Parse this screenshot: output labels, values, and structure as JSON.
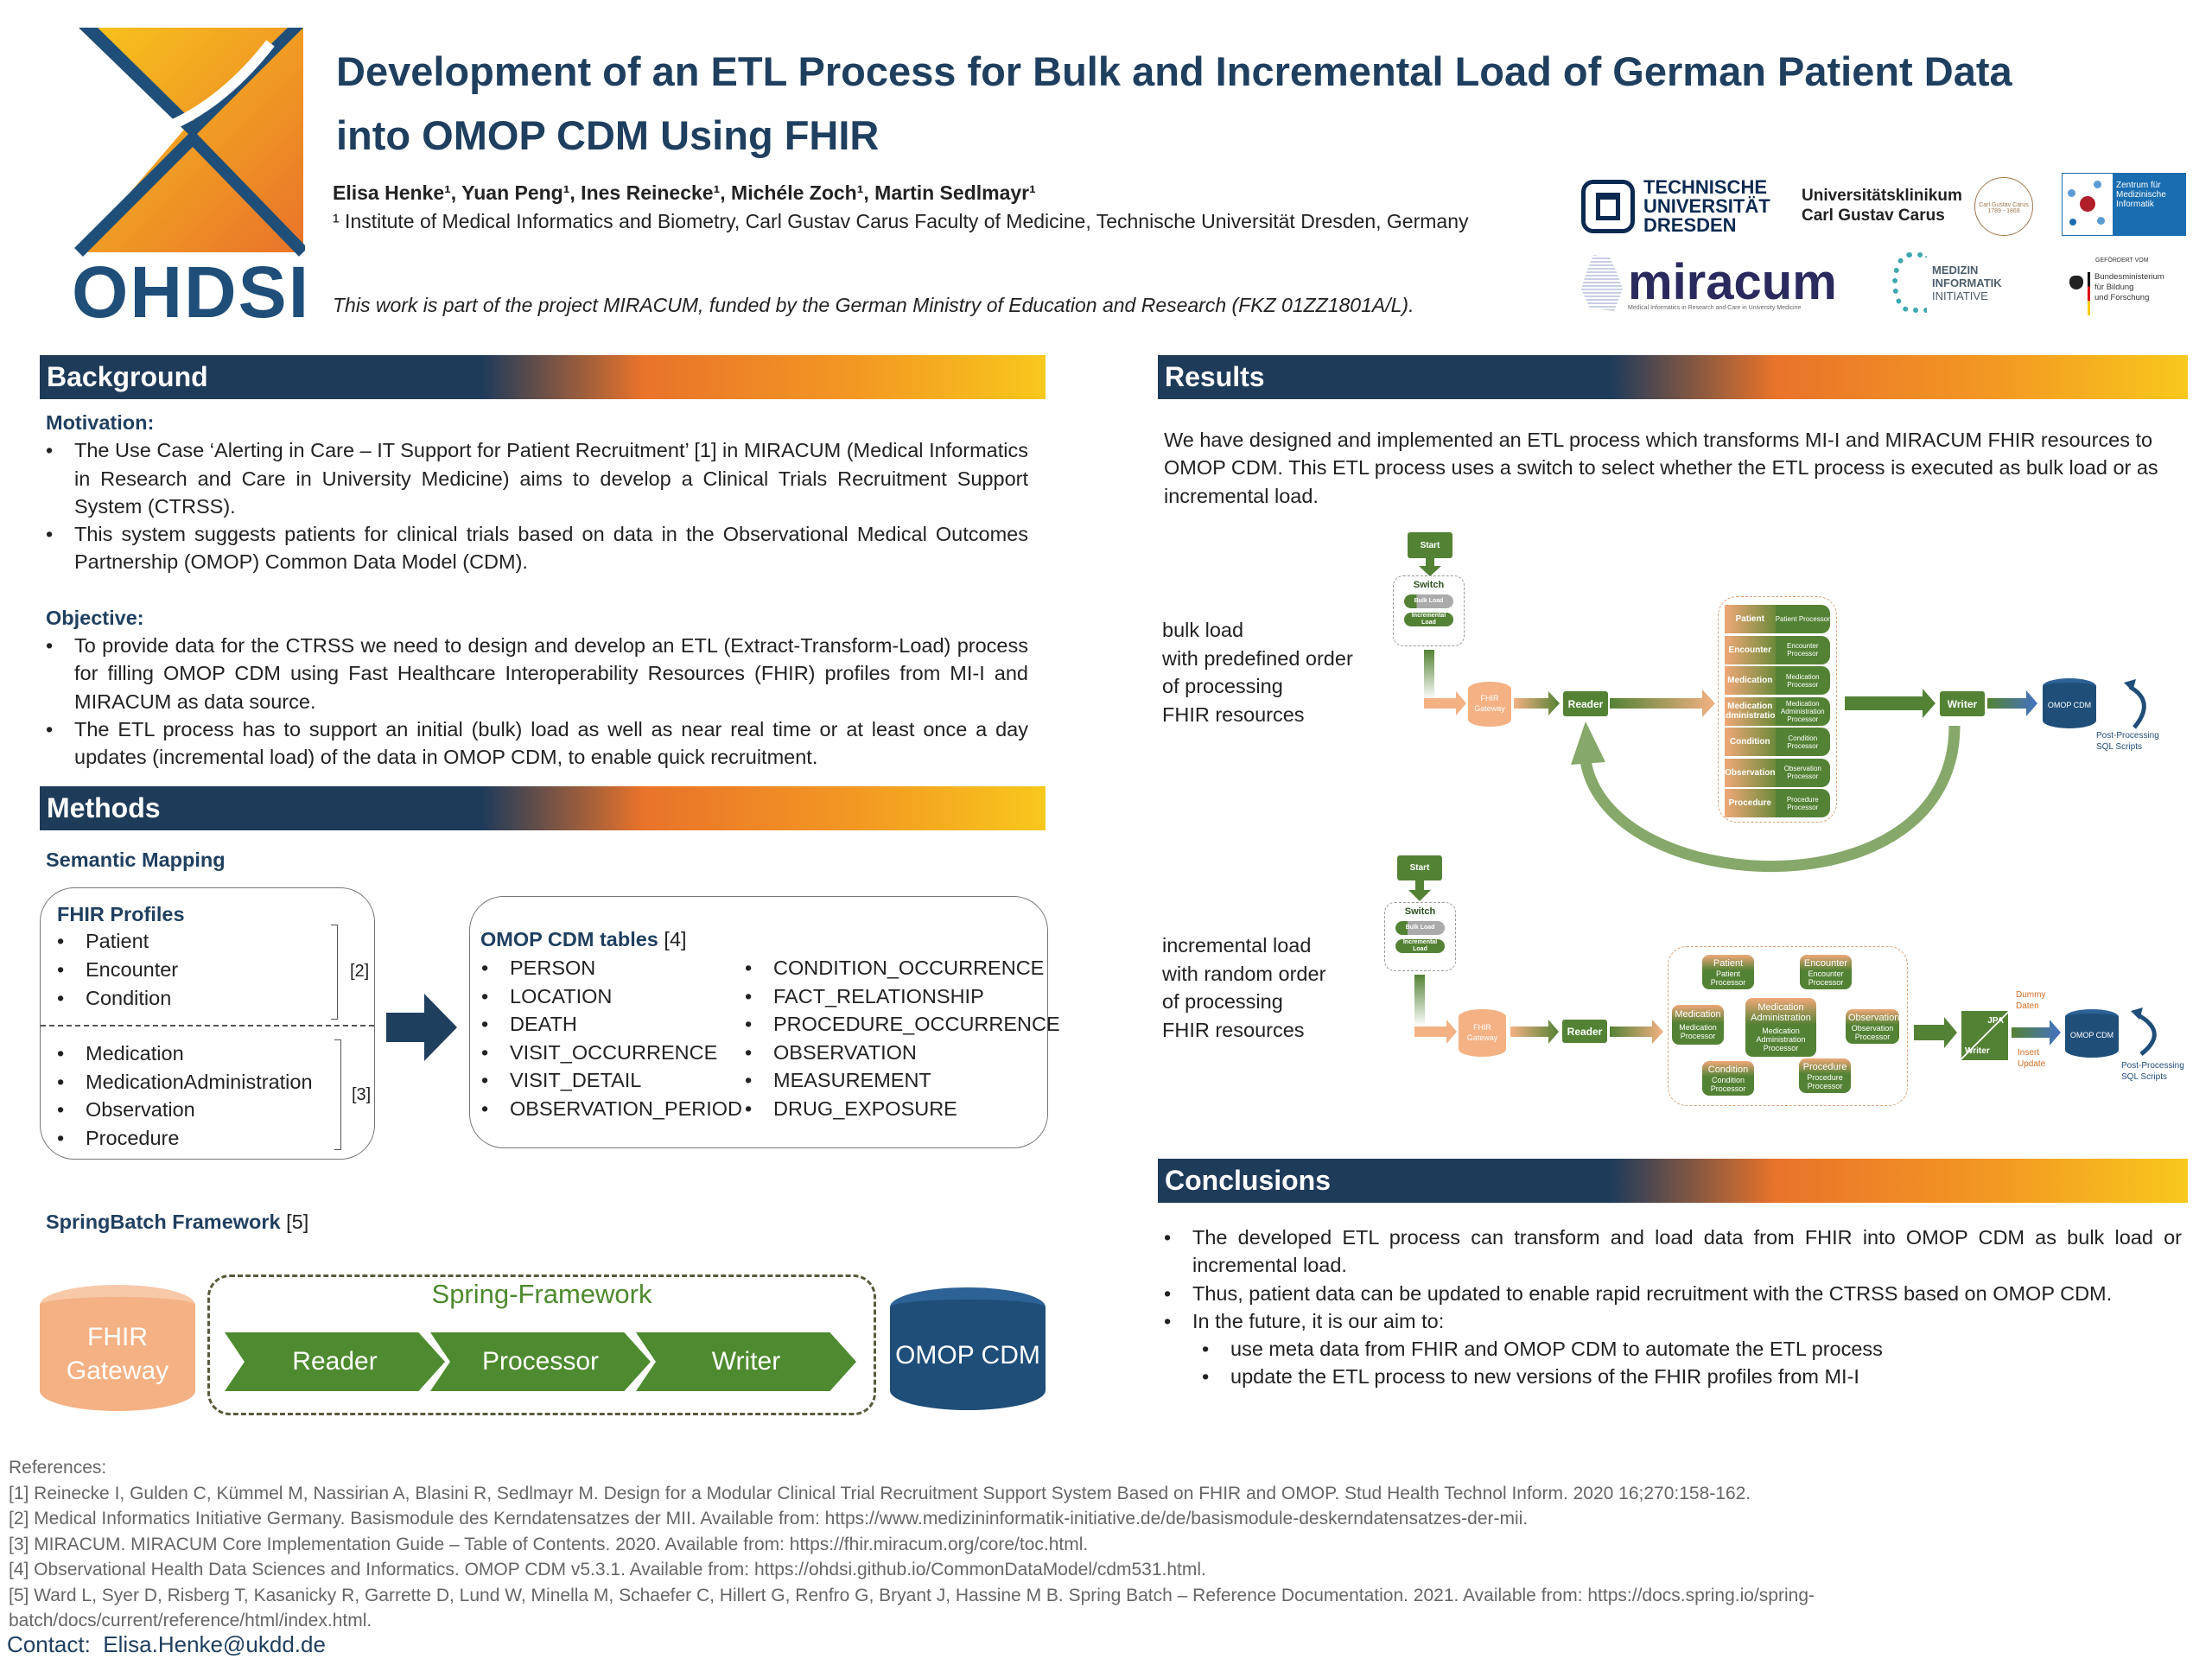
{
  "header": {
    "logo_text": "OHDSI",
    "title_line1": "Development of an ETL Process for Bulk and Incremental Load of German Patient Data",
    "title_line2": "into OMOP CDM Using FHIR",
    "authors": "Elisa Henke¹, Yuan Peng¹, Ines Reinecke¹, Michéle Zoch¹, Martin Sedlmayr¹",
    "affiliation": "¹ Institute of Medical Informatics and Biometry, Carl Gustav Carus Faculty of Medicine, Technische Universität Dresden, Germany",
    "funding": "This work is part of the project MIRACUM, funded by the German Ministry of Education and Research (FKZ 01ZZ1801A/L).",
    "partner_logos": {
      "tud": [
        "TECHNISCHE",
        "UNIVERSITÄT",
        "DRESDEN"
      ],
      "ukd": [
        "Universitätsklinikum",
        "Carl Gustav Carus"
      ],
      "ukd_seal": "Carl Gustav Carus 1789 - 1869",
      "zmi": [
        "Zentrum für",
        "Medizinische",
        "Informatik"
      ],
      "miracum": "miracum",
      "miracum_sub": "Medical Informatics in Research and Care in University Medicine",
      "mii": [
        "MEDIZIN",
        "INFORMATIK",
        "INITIATIVE"
      ],
      "bmbf_top": "GEFÖRDERT VOM",
      "bmbf": [
        "Bundesministerium",
        "für Bildung",
        "und Forschung"
      ]
    }
  },
  "background": {
    "heading": "Background",
    "motivation_label": "Motivation:",
    "motivation": [
      "The Use Case ‘Alerting in Care – IT Support for Patient Recruitment’ [1] in MIRACUM (Medical Informatics in Research and Care in University Medicine) aims to develop a Clinical Trials Recruitment Support System (CTRSS).",
      "This system suggests patients for clinical trials based on data in the Observational Medical Outcomes Partnership (OMOP) Common Data Model (CDM)."
    ],
    "objective_label": "Objective:",
    "objective": [
      "To provide data for the CTRSS we need to design and develop an ETL (Extract-Transform-Load) process for filling OMOP CDM using Fast Healthcare Interoperability Resources (FHIR) profiles from MI-I and MIRACUM as data source.",
      "The ETL process has to support an initial (bulk) load as well as near real time or at least once a day updates (incremental load) of the data in OMOP CDM, to enable quick recruitment."
    ]
  },
  "methods": {
    "heading": "Methods",
    "semantic_label": "Semantic Mapping",
    "fhir_title": "FHIR Profiles",
    "fhir_group1": [
      "Patient",
      "Encounter",
      "Condition"
    ],
    "fhir_ref1": "[2]",
    "fhir_group2": [
      "Medication",
      "MedicationAdministration",
      "Observation",
      "Procedure"
    ],
    "fhir_ref2": "[3]",
    "omop_title": "OMOP CDM tables",
    "omop_ref": "[4]",
    "omop_col1": [
      "PERSON",
      "LOCATION",
      "DEATH",
      "VISIT_OCCURRENCE",
      "VISIT_DETAIL",
      "OBSERVATION_PERIOD"
    ],
    "omop_col2": [
      "CONDITION_OCCURRENCE",
      "FACT_RELATIONSHIP",
      "PROCEDURE_OCCURRENCE",
      "OBSERVATION",
      "MEASUREMENT",
      "DRUG_EXPOSURE"
    ],
    "spring_label": "SpringBatch Framework",
    "spring_ref": "[5]",
    "spring": {
      "gateway": "FHIR Gateway",
      "frame": "Spring-Framework",
      "steps": [
        "Reader",
        "Processor",
        "Writer"
      ],
      "target": "OMOP CDM"
    }
  },
  "results": {
    "heading": "Results",
    "intro": "We have designed and implemented an ETL process which transforms MI-I and MIRACUM FHIR resources to OMOP CDM. This ETL process uses a switch to select whether the ETL process is executed as bulk load or as incremental load.",
    "bulk": {
      "caption": [
        "bulk load",
        "with predefined order",
        "of processing",
        "FHIR resources"
      ],
      "start": "Start",
      "switch": "Switch",
      "bulk_toggle": "Bulk Load",
      "incremental_toggle": "Incremental Load",
      "gateway": "FHIR Gateway",
      "reader": "Reader",
      "processors": [
        {
          "resource": "Patient",
          "processor": "Patient Processor"
        },
        {
          "resource": "Encounter",
          "processor": "Encounter Processor"
        },
        {
          "resource": "Medication",
          "processor": "Medication Processor"
        },
        {
          "resource": "Medication Administration",
          "processor": "Medication Administration Processor"
        },
        {
          "resource": "Condition",
          "processor": "Condition Processor"
        },
        {
          "resource": "Observation",
          "processor": "Observation Processor"
        },
        {
          "resource": "Procedure",
          "processor": "Procedure Processor"
        }
      ],
      "writer": "Writer",
      "target": "OMOP CDM",
      "post": "Post-Processing SQL Scripts"
    },
    "incremental": {
      "caption": [
        "incremental load",
        "with random order",
        "of processing",
        "FHIR resources"
      ],
      "start": "Start",
      "switch": "Switch",
      "bulk_toggle": "Bulk Load",
      "incremental_toggle": "Incremental Load",
      "gateway": "FHIR Gateway",
      "reader": "Reader",
      "processors": [
        {
          "resource": "Patient",
          "processor": "Patient Processor"
        },
        {
          "resource": "Encounter",
          "processor": "Encounter Processor"
        },
        {
          "resource": "Medication",
          "processor": "Medication Processor"
        },
        {
          "resource": "Medication Administration",
          "processor": "Medication Administration Processor"
        },
        {
          "resource": "Observation",
          "processor": "Observation Processor"
        },
        {
          "resource": "Condition",
          "processor": "Condition Processor"
        },
        {
          "resource": "Procedure",
          "processor": "Procedure Processor"
        }
      ],
      "jpa": "JPA",
      "writer": "Writer",
      "dummy": "Dummy Daten",
      "insert": "Insert Update",
      "target": "OMOP CDM",
      "post": "Post-Processing SQL Scripts"
    }
  },
  "conclusions": {
    "heading": "Conclusions",
    "items": [
      "The developed ETL process can transform and load data from FHIR into OMOP CDM as bulk load or incremental load.",
      "Thus, patient data can be updated to enable rapid recruitment with the CTRSS based on OMOP CDM.",
      "In the future, it is our aim to:"
    ],
    "sub_items": [
      "use meta data from FHIR and OMOP CDM to automate the ETL process",
      "update the ETL process to new versions of the FHIR profiles from MI-I"
    ]
  },
  "references": {
    "label": "References:",
    "items": [
      "[1] Reinecke I, Gulden C, Kümmel M, Nassirian A, Blasini R, Sedlmayr M. Design for a Modular Clinical Trial Recruitment Support System Based on FHIR and OMOP. Stud Health Technol Inform. 2020 16;270:158-162.",
      "[2] Medical Informatics Initiative Germany. Basismodule des Kerndatensatzes der MII. Available from: https://www.medizininformatik-initiative.de/de/basismodule-deskerndatensatzes-der-mii.",
      "[3] MIRACUM. MIRACUM Core Implementation Guide – Table of Contents. 2020. Available from: https://fhir.miracum.org/core/toc.html.",
      "[4] Observational Health Data Sciences and Informatics. OMOP CDM v5.3.1. Available from: https://ohdsi.github.io/CommonDataModel/cdm531.html.",
      "[5] Ward L, Syer D, Risberg T, Kasanicky R, Garrette D, Lund W, Minella M, Schaefer C, Hillert G, Renfro G, Bryant J, Hassine M B. Spring Batch – Reference Documentation. 2021. Available from: https://docs.spring.io/spring-batch/docs/current/reference/html/index.html."
    ]
  },
  "contact": {
    "label": "Contact:",
    "email": "Elisa.Henke@ukdd.de"
  },
  "colors": {
    "navy": "#1f3f5f",
    "green": "#548235",
    "orange": "#f4b183",
    "blue": "#1f4e79"
  }
}
